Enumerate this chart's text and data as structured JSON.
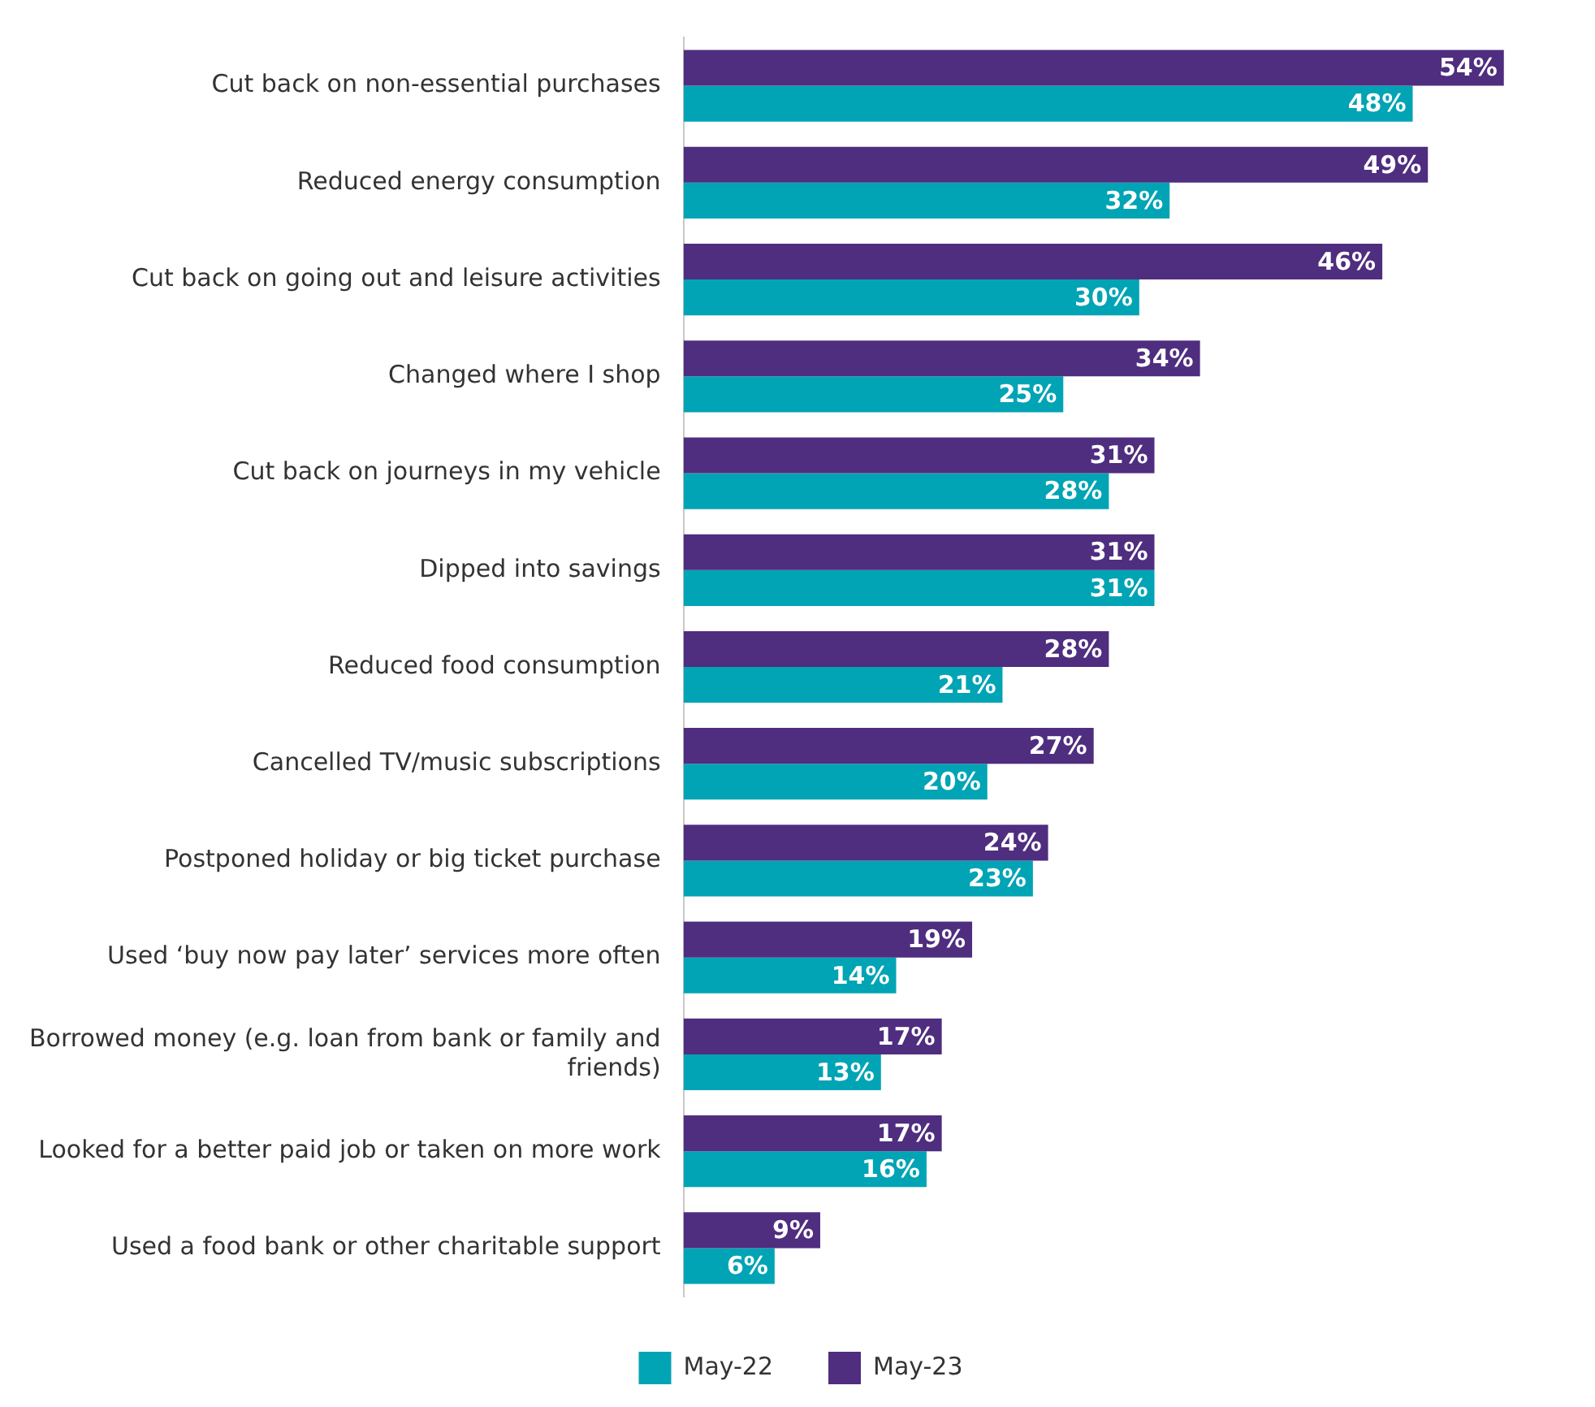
{
  "chart_data": {
    "type": "bar",
    "orientation": "horizontal",
    "categories": [
      "Cut back on non-essential purchases",
      "Reduced energy consumption",
      "Cut back on going out and leisure activities",
      "Changed where I shop",
      "Cut back on journeys in my vehicle",
      "Dipped into savings",
      "Reduced food consumption",
      "Cancelled TV/music subscriptions",
      "Postponed holiday or big ticket purchase",
      "Used ‘buy now pay later’ services more often",
      "Borrowed money (e.g. loan from bank or family and friends)",
      "Looked for a better paid job or taken on more work",
      "Used a food bank or other charitable support"
    ],
    "series": [
      {
        "name": "May-23",
        "color": "#4f2d7f",
        "values": [
          54,
          49,
          46,
          34,
          31,
          31,
          28,
          27,
          24,
          19,
          17,
          17,
          9
        ],
        "value_labels": [
          "54%",
          "49%",
          "46%",
          "34%",
          "31%",
          "31%",
          "28%",
          "27%",
          "24%",
          "19%",
          "17%",
          "17%",
          "9%"
        ]
      },
      {
        "name": "May-22",
        "color": "#00a4b4",
        "values": [
          48,
          32,
          30,
          25,
          28,
          31,
          21,
          20,
          23,
          14,
          13,
          16,
          6
        ],
        "value_labels": [
          "48%",
          "32%",
          "30%",
          "25%",
          "28%",
          "31%",
          "21%",
          "20%",
          "23%",
          "14%",
          "13%",
          "16%",
          "6%"
        ]
      }
    ],
    "legend": "bottom"
  }
}
